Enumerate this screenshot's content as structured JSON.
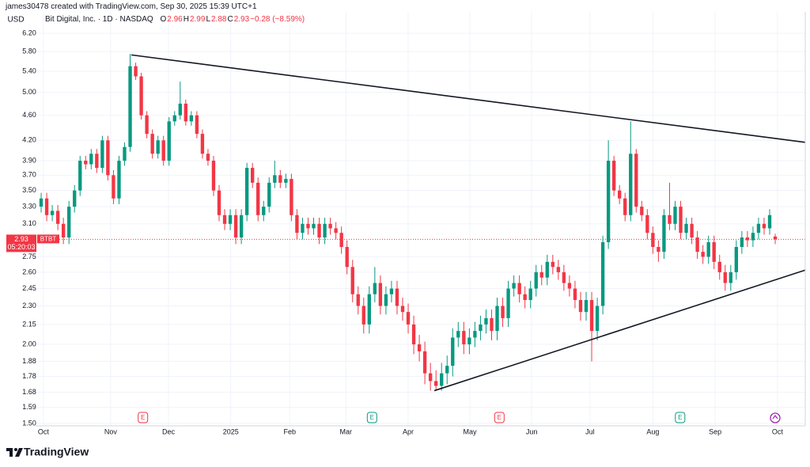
{
  "chart_data": {
    "type": "candlestick",
    "credit": "james30478 created with TradingView.com, Sep 30, 2025 15:39 UTC+1",
    "symbol": "Bit Digital, Inc. · 1D · NASDAQ",
    "readout": [
      {
        "label": "O",
        "value": 2.96
      },
      {
        "label": "H",
        "value": 2.99
      },
      {
        "label": "L",
        "value": 2.88
      },
      {
        "label": "C",
        "value": 2.93
      }
    ],
    "change": "−0.28 (−8.59%)",
    "currency": "USD",
    "brand": "TradingView",
    "up_color": "#089981",
    "down_color": "#f23645",
    "log_scale": true,
    "grid": true,
    "xlim": [
      -1,
      137.4
    ],
    "xticks": [
      {
        "value": 0.4,
        "label": "Oct"
      },
      {
        "value": 12.5,
        "label": "Nov"
      },
      {
        "value": 22.9,
        "label": "Dec"
      },
      {
        "value": 34.1,
        "label": "2025"
      },
      {
        "value": 44.7,
        "label": "Feb"
      },
      {
        "value": 54.8,
        "label": "Mar"
      },
      {
        "value": 66.0,
        "label": "Apr"
      },
      {
        "value": 77.1,
        "label": "May"
      },
      {
        "value": 88.2,
        "label": "Jun"
      },
      {
        "value": 98.7,
        "label": "Jul"
      },
      {
        "value": 110.0,
        "label": "Aug"
      },
      {
        "value": 121.2,
        "label": "Sep"
      },
      {
        "value": 132.4,
        "label": "Oct"
      }
    ],
    "ylim": [
      1.5,
      6.2
    ],
    "yticks": [
      {
        "value": 6.2,
        "label": "6.20"
      },
      {
        "value": 5.8,
        "label": "5.80"
      },
      {
        "value": 5.4,
        "label": "5.40"
      },
      {
        "value": 5,
        "label": "5.00"
      },
      {
        "value": 4.6,
        "label": "4.60"
      },
      {
        "value": 4.2,
        "label": "4.20"
      },
      {
        "value": 3.9,
        "label": "3.90"
      },
      {
        "value": 3.7,
        "label": "3.70"
      },
      {
        "value": 3.5,
        "label": "3.50"
      },
      {
        "value": 3.3,
        "label": "3.30"
      },
      {
        "value": 3.1,
        "label": "3.10"
      },
      {
        "value": 2.75,
        "label": "2.75"
      },
      {
        "value": 2.6,
        "label": "2.60"
      },
      {
        "value": 2.45,
        "label": "2.45"
      },
      {
        "value": 2.3,
        "label": "2.30"
      },
      {
        "value": 2.15,
        "label": "2.15"
      },
      {
        "value": 2,
        "label": "2.00"
      },
      {
        "value": 1.88,
        "label": "1.88"
      },
      {
        "value": 1.78,
        "label": "1.78"
      },
      {
        "value": 1.68,
        "label": "1.68"
      },
      {
        "value": 1.59,
        "label": "1.59"
      },
      {
        "value": 1.5,
        "label": "1.50"
      }
    ],
    "open": [
      3.3,
      3.4,
      3.2,
      3.25,
      3.1,
      2.95,
      3.3,
      3.5,
      3.9,
      3.85,
      4.0,
      3.8,
      4.2,
      3.7,
      3.4,
      3.9,
      4.1,
      5.5,
      5.3,
      4.6,
      4.3,
      4.0,
      4.2,
      3.9,
      4.5,
      4.6,
      4.8,
      4.5,
      4.6,
      4.3,
      4.0,
      3.9,
      3.5,
      3.2,
      3.1,
      3.2,
      2.95,
      3.2,
      3.8,
      3.6,
      3.2,
      3.3,
      3.6,
      3.7,
      3.6,
      3.65,
      3.2,
      3.0,
      3.1,
      3.05,
      3.1,
      2.95,
      3.1,
      3.05,
      3.0,
      2.85,
      2.65,
      2.4,
      2.3,
      2.15,
      2.4,
      2.5,
      2.3,
      2.4,
      2.45,
      2.3,
      2.25,
      2.15,
      2.0,
      1.95,
      1.8,
      1.75,
      1.72,
      1.8,
      1.85,
      2.05,
      2.1,
      2.0,
      2.05,
      2.1,
      2.15,
      2.2,
      2.1,
      2.3,
      2.2,
      2.45,
      2.5,
      2.4,
      2.35,
      2.45,
      2.6,
      2.55,
      2.7,
      2.65,
      2.6,
      2.5,
      2.45,
      2.35,
      2.25,
      2.35,
      2.1,
      2.3,
      2.9,
      3.9,
      3.5,
      3.4,
      3.2,
      4.0,
      3.3,
      3.2,
      3.0,
      2.85,
      2.8,
      3.2,
      3.1,
      3.3,
      3.0,
      3.1,
      2.95,
      2.8,
      2.75,
      2.9,
      2.7,
      2.6,
      2.5,
      2.6,
      2.85,
      2.95,
      2.92,
      3.0,
      3.1,
      3.05,
      2.96
    ],
    "high": [
      3.47,
      3.47,
      3.32,
      3.32,
      3.17,
      3.37,
      3.57,
      3.97,
      3.97,
      4.07,
      4.07,
      4.27,
      4.27,
      3.77,
      3.97,
      4.17,
      5.75,
      5.57,
      5.37,
      4.67,
      4.37,
      4.27,
      4.27,
      4.57,
      4.67,
      5.2,
      4.87,
      4.67,
      4.67,
      4.37,
      4.07,
      3.97,
      3.57,
      3.27,
      3.27,
      3.27,
      3.27,
      3.87,
      3.87,
      3.67,
      3.37,
      3.67,
      3.9,
      3.77,
      3.72,
      3.72,
      3.27,
      3.17,
      3.17,
      3.17,
      3.17,
      3.17,
      3.17,
      3.12,
      3.07,
      2.92,
      2.72,
      2.47,
      2.37,
      2.47,
      2.65,
      2.57,
      2.47,
      2.52,
      2.52,
      2.37,
      2.32,
      2.22,
      2.07,
      2.02,
      1.87,
      1.82,
      1.87,
      1.92,
      2.12,
      2.17,
      2.17,
      2.12,
      2.17,
      2.22,
      2.27,
      2.27,
      2.37,
      2.37,
      2.52,
      2.57,
      2.57,
      2.47,
      2.52,
      2.67,
      2.67,
      2.77,
      2.77,
      2.72,
      2.67,
      2.57,
      2.52,
      2.42,
      2.42,
      2.42,
      2.37,
      2.97,
      4.2,
      3.97,
      3.57,
      3.47,
      4.5,
      4.07,
      3.37,
      3.27,
      3.07,
      2.92,
      3.27,
      3.6,
      3.37,
      3.37,
      3.17,
      3.17,
      3.02,
      2.87,
      2.97,
      2.97,
      2.77,
      2.67,
      2.67,
      2.92,
      3.02,
      3.02,
      3.07,
      3.17,
      3.17,
      3.27,
      2.99
    ],
    "low": [
      3.23,
      3.13,
      3.13,
      3.03,
      2.88,
      2.88,
      3.23,
      3.43,
      3.78,
      3.78,
      3.73,
      3.73,
      3.63,
      3.33,
      3.33,
      3.83,
      4.03,
      5.23,
      4.53,
      4.23,
      3.93,
      3.93,
      3.83,
      3.83,
      4.43,
      4.53,
      4.43,
      4.43,
      4.23,
      3.93,
      3.83,
      3.43,
      3.13,
      3.03,
      3.03,
      2.88,
      2.88,
      3.13,
      3.53,
      3.13,
      3.13,
      3.23,
      3.53,
      3.53,
      3.53,
      3.13,
      2.93,
      2.93,
      2.98,
      2.98,
      2.88,
      2.88,
      2.98,
      2.93,
      2.78,
      2.58,
      2.33,
      2.23,
      2.08,
      2.08,
      2.33,
      2.23,
      2.23,
      2.33,
      2.23,
      2.18,
      2.08,
      1.93,
      1.88,
      1.73,
      1.69,
      1.69,
      1.69,
      1.73,
      1.78,
      1.98,
      1.93,
      1.93,
      1.98,
      2.03,
      2.08,
      2.03,
      2.03,
      2.13,
      2.13,
      2.38,
      2.33,
      2.28,
      2.28,
      2.38,
      2.48,
      2.48,
      2.58,
      2.53,
      2.43,
      2.38,
      2.28,
      2.18,
      2.18,
      1.88,
      2.03,
      2.23,
      2.83,
      3.43,
      3.33,
      3.13,
      3.13,
      3.23,
      3.13,
      2.93,
      2.78,
      2.7,
      2.73,
      3.03,
      3.03,
      2.93,
      2.93,
      2.88,
      2.73,
      2.68,
      2.68,
      2.63,
      2.53,
      2.43,
      2.43,
      2.53,
      2.78,
      2.85,
      2.85,
      2.93,
      2.98,
      2.98,
      2.88
    ],
    "close": [
      3.4,
      3.2,
      3.25,
      3.1,
      2.95,
      3.3,
      3.5,
      3.9,
      3.85,
      4.0,
      3.8,
      4.2,
      3.7,
      3.4,
      3.9,
      4.1,
      5.5,
      5.3,
      4.6,
      4.3,
      4.0,
      4.2,
      3.9,
      4.5,
      4.6,
      4.8,
      4.5,
      4.6,
      4.3,
      4.0,
      3.9,
      3.5,
      3.2,
      3.1,
      3.2,
      2.95,
      3.2,
      3.8,
      3.6,
      3.2,
      3.3,
      3.6,
      3.7,
      3.6,
      3.65,
      3.2,
      3.0,
      3.1,
      3.05,
      3.1,
      2.95,
      3.1,
      3.05,
      3.0,
      2.85,
      2.65,
      2.4,
      2.3,
      2.15,
      2.4,
      2.5,
      2.3,
      2.4,
      2.45,
      2.3,
      2.25,
      2.15,
      2.0,
      1.95,
      1.8,
      1.75,
      1.72,
      1.8,
      1.85,
      2.05,
      2.1,
      2.0,
      2.05,
      2.1,
      2.15,
      2.2,
      2.1,
      2.3,
      2.2,
      2.45,
      2.5,
      2.4,
      2.35,
      2.45,
      2.6,
      2.55,
      2.7,
      2.65,
      2.6,
      2.5,
      2.45,
      2.35,
      2.25,
      2.35,
      2.1,
      2.3,
      2.9,
      3.9,
      3.5,
      3.4,
      3.2,
      4.0,
      3.3,
      3.2,
      3.0,
      2.85,
      2.8,
      3.2,
      3.1,
      3.3,
      3.0,
      3.1,
      2.95,
      2.8,
      2.75,
      2.9,
      2.7,
      2.6,
      2.5,
      2.6,
      2.85,
      2.95,
      2.92,
      3.0,
      3.1,
      3.05,
      3.2,
      2.93
    ],
    "trendlines": [
      {
        "x": [
          16.2,
          137.4
        ],
        "y": [
          5.73,
          4.17
        ],
        "color": "#131722"
      },
      {
        "x": [
          70.7,
          137.4
        ],
        "y": [
          1.69,
          2.62
        ],
        "color": "#131722"
      }
    ],
    "events": [
      {
        "x": 18.3,
        "label": "E",
        "color": "#f23645"
      },
      {
        "x": 59.5,
        "label": "E",
        "color": "#089981"
      },
      {
        "x": 82.4,
        "label": "E",
        "color": "#f23645"
      },
      {
        "x": 114.9,
        "label": "E",
        "color": "#089981"
      }
    ],
    "last_price": {
      "value": 2.93,
      "countdown": "05:20:03",
      "ticker": "BTBT",
      "color": "#f23645"
    }
  }
}
